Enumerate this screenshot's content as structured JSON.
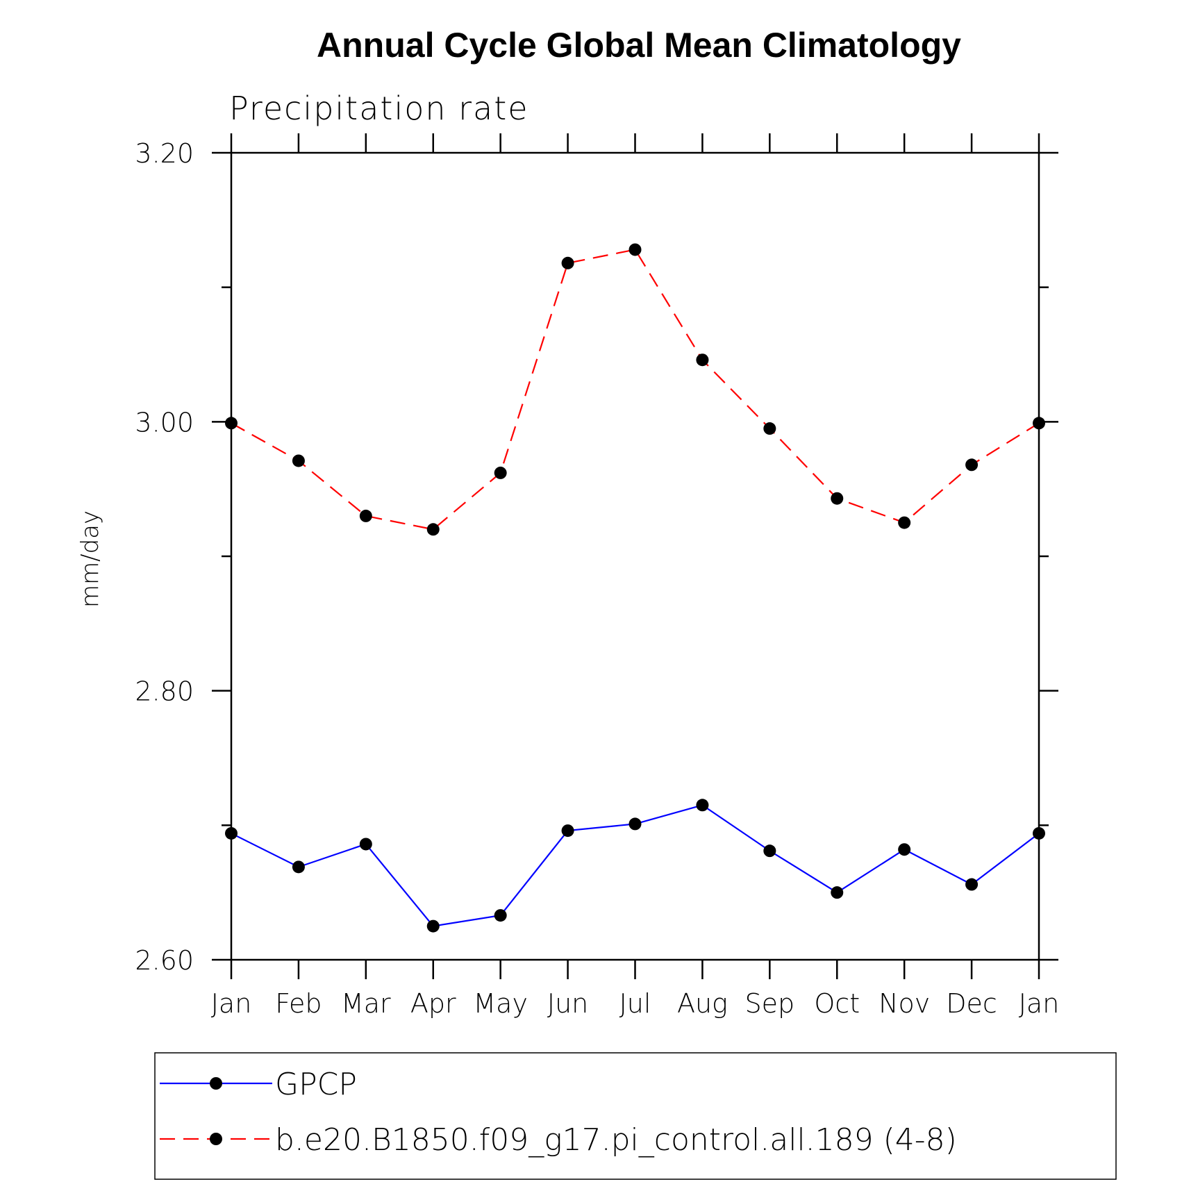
{
  "chart_data": {
    "type": "line",
    "title": "Annual Cycle Global Mean Climatology",
    "subtitle": "Precipitation rate",
    "ylabel": "mm/day",
    "xlabel": "",
    "ylim": [
      2.6,
      3.2
    ],
    "yticks": [
      "2.60",
      "2.80",
      "3.00",
      "3.20"
    ],
    "categories": [
      "Jan",
      "Feb",
      "Mar",
      "Apr",
      "May",
      "Jun",
      "Jul",
      "Aug",
      "Sep",
      "Oct",
      "Nov",
      "Dec",
      "Jan"
    ],
    "series": [
      {
        "name": "GPCP",
        "color": "#0000ff",
        "style": "solid",
        "values": [
          2.694,
          2.669,
          2.686,
          2.625,
          2.633,
          2.696,
          2.701,
          2.715,
          2.681,
          2.65,
          2.682,
          2.656,
          2.694
        ]
      },
      {
        "name": "b.e20.B1850.f09_g17.pi_control.all.189 (4-8)",
        "color": "#ff0000",
        "style": "dashed",
        "values": [
          2.999,
          2.971,
          2.93,
          2.92,
          2.962,
          3.118,
          3.128,
          3.046,
          2.995,
          2.943,
          2.925,
          2.968,
          2.999
        ]
      }
    ],
    "marker_color": "#000000",
    "legend_position": "bottom"
  }
}
